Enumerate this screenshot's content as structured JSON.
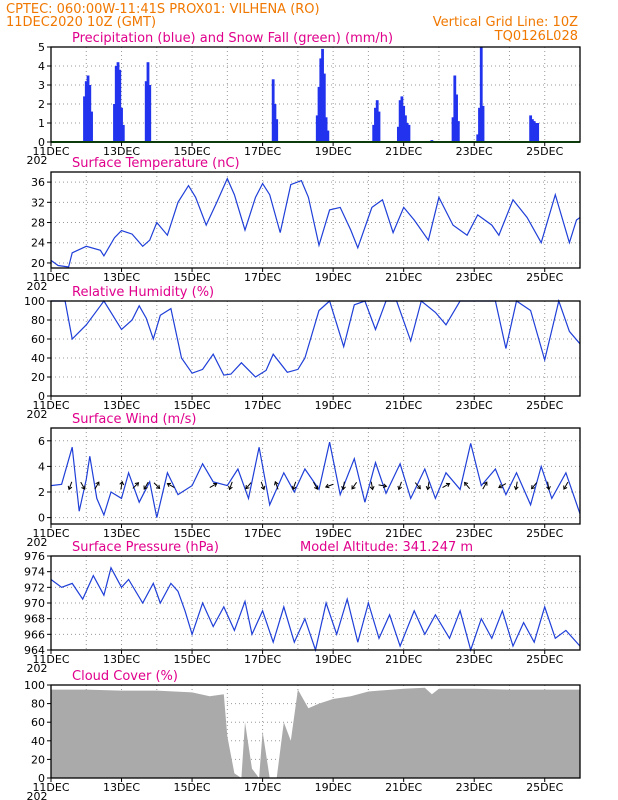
{
  "header": {
    "line1": "CPTEC:   060:00W-11:41S   PROX01: VILHENA (RO)",
    "line2": "11DEC2020 10Z (GMT)",
    "right1": "Vertical Grid Line: 10Z",
    "right2": "TQ0126L028"
  },
  "x_axis": {
    "labels": [
      "11DEC",
      "13DEC",
      "15DEC",
      "17DEC",
      "19DEC",
      "21DEC",
      "23DEC",
      "25DEC"
    ],
    "year_fragment": "202"
  },
  "colors": {
    "header": "#f07800",
    "panel_title": "#e0008c",
    "line": "#1f3fd8",
    "precip": "#2233ee",
    "snow": "#22aa22",
    "cloud": "#aaaaaa",
    "grid": "#999999"
  },
  "chart_data": [
    {
      "type": "bar",
      "title": "Precipitation (blue) and Snow Fall (green) (mm/h)",
      "ylim": [
        0,
        5
      ],
      "yticks": [
        0,
        1,
        2,
        3,
        4,
        5
      ],
      "x_range_days": [
        0,
        15
      ],
      "series": [
        {
          "name": "Precipitation",
          "points": [
            [
              0.95,
              2.4
            ],
            [
              1.0,
              3.2
            ],
            [
              1.05,
              3.5
            ],
            [
              1.1,
              3.0
            ],
            [
              1.15,
              1.6
            ],
            [
              1.8,
              2.0
            ],
            [
              1.85,
              4.0
            ],
            [
              1.9,
              4.2
            ],
            [
              1.95,
              3.8
            ],
            [
              2.0,
              1.8
            ],
            [
              2.05,
              0.9
            ],
            [
              2.7,
              3.2
            ],
            [
              2.75,
              4.2
            ],
            [
              2.8,
              3.0
            ],
            [
              6.3,
              3.3
            ],
            [
              6.35,
              2.0
            ],
            [
              6.4,
              1.2
            ],
            [
              7.55,
              1.4
            ],
            [
              7.6,
              2.9
            ],
            [
              7.65,
              4.4
            ],
            [
              7.7,
              4.9
            ],
            [
              7.75,
              3.6
            ],
            [
              7.8,
              1.3
            ],
            [
              7.85,
              0.6
            ],
            [
              9.15,
              0.9
            ],
            [
              9.2,
              1.8
            ],
            [
              9.25,
              2.2
            ],
            [
              9.3,
              1.6
            ],
            [
              9.85,
              0.8
            ],
            [
              9.9,
              2.2
            ],
            [
              9.95,
              2.4
            ],
            [
              10.0,
              1.9
            ],
            [
              10.05,
              1.4
            ],
            [
              10.1,
              1.0
            ],
            [
              10.15,
              0.9
            ],
            [
              10.8,
              0.1
            ],
            [
              11.4,
              1.3
            ],
            [
              11.45,
              3.5
            ],
            [
              11.5,
              2.5
            ],
            [
              11.55,
              1.1
            ],
            [
              12.1,
              0.4
            ],
            [
              12.15,
              1.8
            ],
            [
              12.2,
              5.0
            ],
            [
              12.25,
              1.9
            ],
            [
              13.6,
              1.4
            ],
            [
              13.65,
              1.2
            ],
            [
              13.7,
              1.1
            ],
            [
              13.75,
              1.0
            ],
            [
              13.8,
              1.0
            ]
          ]
        },
        {
          "name": "Snow Fall",
          "constant": 0
        }
      ]
    },
    {
      "type": "line",
      "title": "Surface Temperature (nC)",
      "ylim": [
        19,
        38
      ],
      "yticks": [
        20,
        24,
        28,
        32,
        36
      ],
      "series": [
        {
          "name": "Temperature",
          "x": [
            0,
            0.2,
            0.5,
            0.6,
            1.0,
            1.4,
            1.5,
            1.8,
            2.0,
            2.3,
            2.6,
            2.8,
            3.0,
            3.3,
            3.6,
            3.9,
            4.1,
            4.4,
            4.7,
            5.0,
            5.2,
            5.5,
            5.8,
            6.0,
            6.2,
            6.5,
            6.8,
            7.1,
            7.3,
            7.6,
            7.9,
            8.2,
            8.5,
            8.7,
            9.1,
            9.4,
            9.7,
            10.0,
            10.3,
            10.7,
            11.0,
            11.4,
            11.8,
            12.1,
            12.5,
            12.7,
            13.1,
            13.5,
            13.9,
            14.3,
            14.7,
            14.9,
            15.0
          ],
          "y": [
            20.5,
            19.5,
            19.2,
            22.0,
            23.3,
            22.5,
            21.4,
            25.0,
            26.4,
            25.7,
            23.3,
            24.5,
            28.0,
            25.5,
            32.0,
            35.3,
            33.0,
            27.5,
            32.0,
            36.7,
            33.5,
            26.5,
            33.0,
            35.7,
            33.5,
            26.0,
            35.5,
            36.3,
            33.0,
            23.5,
            30.5,
            31.0,
            26.5,
            23.0,
            31.0,
            32.5,
            26.0,
            31.0,
            28.5,
            24.5,
            33.0,
            27.5,
            25.5,
            29.5,
            27.5,
            25.5,
            32.5,
            29.0,
            24.0,
            33.5,
            24.0,
            28.5,
            29.0
          ]
        }
      ]
    },
    {
      "type": "line",
      "title": "Relative Humidity (%)",
      "ylim": [
        0,
        100
      ],
      "yticks": [
        0,
        20,
        40,
        60,
        80,
        100
      ],
      "series": [
        {
          "name": "Relative Humidity",
          "x": [
            0,
            0.4,
            0.6,
            1.0,
            1.4,
            1.5,
            1.7,
            2.0,
            2.3,
            2.5,
            2.7,
            2.9,
            3.1,
            3.4,
            3.7,
            4.0,
            4.3,
            4.6,
            4.9,
            5.1,
            5.4,
            5.8,
            6.1,
            6.3,
            6.7,
            7.0,
            7.2,
            7.6,
            7.9,
            8.3,
            8.6,
            8.9,
            9.2,
            9.5,
            9.8,
            10.2,
            10.5,
            10.9,
            11.2,
            11.6,
            11.9,
            12.3,
            12.6,
            12.9,
            13.2,
            13.6,
            14.0,
            14.4,
            14.7,
            15.0
          ],
          "y": [
            100,
            100,
            60,
            75,
            95,
            100,
            88,
            70,
            80,
            95,
            82,
            60,
            85,
            92,
            40,
            24,
            28,
            44,
            22,
            23,
            35,
            20,
            27,
            44,
            25,
            28,
            40,
            90,
            100,
            52,
            96,
            100,
            70,
            100,
            100,
            58,
            100,
            88,
            75,
            100,
            100,
            100,
            100,
            50,
            100,
            90,
            38,
            100,
            68,
            55
          ]
        }
      ]
    },
    {
      "type": "line",
      "title": "Surface Wind (m/s)",
      "ylim": [
        -0.5,
        7
      ],
      "yticks": [
        0,
        2,
        4,
        6
      ],
      "series": [
        {
          "name": "Wind Speed",
          "x": [
            0,
            0.3,
            0.6,
            0.8,
            1.0,
            1.1,
            1.3,
            1.5,
            1.7,
            2.0,
            2.2,
            2.5,
            2.8,
            3.0,
            3.3,
            3.6,
            4.0,
            4.3,
            4.6,
            5.0,
            5.3,
            5.6,
            5.9,
            6.2,
            6.6,
            6.9,
            7.2,
            7.6,
            7.9,
            8.2,
            8.6,
            8.9,
            9.2,
            9.5,
            9.9,
            10.2,
            10.6,
            10.9,
            11.2,
            11.6,
            11.9,
            12.2,
            12.6,
            12.9,
            13.2,
            13.6,
            13.9,
            14.2,
            14.6,
            15.0
          ],
          "y": [
            2.5,
            2.6,
            5.5,
            0.5,
            3.0,
            4.8,
            1.5,
            0.2,
            2.0,
            1.5,
            3.5,
            1.2,
            2.8,
            0.0,
            3.5,
            1.8,
            2.5,
            4.2,
            2.8,
            2.5,
            3.8,
            1.5,
            5.5,
            1.0,
            3.5,
            2.0,
            3.8,
            2.2,
            5.9,
            1.8,
            4.6,
            1.2,
            4.3,
            1.9,
            4.2,
            1.5,
            3.8,
            1.5,
            3.5,
            2.2,
            5.8,
            2.5,
            3.8,
            1.8,
            3.5,
            1.0,
            4.0,
            1.5,
            3.5,
            0.3
          ]
        }
      ],
      "arrows_x": [
        0.55,
        0.9,
        1.3,
        2.0,
        2.4,
        2.7,
        3.0,
        3.4,
        4.6,
        5.1,
        5.6,
        6.0,
        6.4,
        6.9,
        7.5,
        7.9,
        8.3,
        8.6,
        9.1,
        9.4,
        9.9,
        10.4,
        10.7,
        11.2,
        11.8,
        12.3,
        12.8,
        13.2,
        13.7,
        14.1,
        14.6
      ],
      "arrows_deg": [
        200,
        150,
        30,
        10,
        45,
        210,
        135,
        300,
        60,
        200,
        220,
        160,
        340,
        200,
        150,
        250,
        190,
        215,
        170,
        100,
        200,
        140,
        190,
        60,
        320,
        30,
        240,
        190,
        220,
        170,
        210
      ]
    },
    {
      "type": "line",
      "title": "Surface Pressure (hPa)",
      "annotation": "Model Altitude: 341.247 m",
      "ylim": [
        964,
        976
      ],
      "yticks": [
        964,
        966,
        968,
        970,
        972,
        974,
        976
      ],
      "series": [
        {
          "name": "Pressure",
          "x": [
            0,
            0.3,
            0.6,
            0.9,
            1.2,
            1.5,
            1.7,
            2.0,
            2.2,
            2.6,
            2.9,
            3.1,
            3.4,
            3.6,
            3.8,
            4.0,
            4.3,
            4.6,
            4.9,
            5.2,
            5.5,
            5.7,
            6.0,
            6.3,
            6.6,
            6.9,
            7.2,
            7.5,
            7.8,
            8.1,
            8.4,
            8.7,
            9.0,
            9.3,
            9.6,
            9.9,
            10.3,
            10.6,
            10.9,
            11.3,
            11.6,
            11.9,
            12.2,
            12.5,
            12.8,
            13.1,
            13.4,
            13.7,
            14.0,
            14.3,
            14.6,
            15.0
          ],
          "y": [
            973.0,
            972.0,
            972.5,
            970.5,
            973.5,
            971.0,
            974.5,
            972.0,
            973.0,
            970.0,
            972.5,
            970.0,
            972.5,
            971.5,
            969.0,
            966.0,
            970.0,
            967.0,
            969.5,
            966.5,
            970.2,
            966.0,
            969.0,
            965.0,
            969.5,
            965.0,
            968.0,
            964.0,
            970.0,
            966.0,
            970.5,
            965.0,
            970.0,
            965.5,
            968.5,
            964.5,
            969.0,
            966.0,
            968.5,
            965.5,
            969.0,
            964.0,
            968.0,
            965.5,
            969.0,
            964.5,
            967.5,
            965.0,
            969.5,
            965.5,
            966.5,
            964.5
          ]
        }
      ]
    },
    {
      "type": "area",
      "title": "Cloud Cover (%)",
      "ylim": [
        0,
        100
      ],
      "yticks": [
        0,
        20,
        40,
        60,
        80,
        100
      ],
      "series": [
        {
          "name": "Cloud Cover",
          "x": [
            0,
            1.0,
            2.0,
            3.0,
            4.0,
            4.5,
            4.9,
            5.0,
            5.2,
            5.4,
            5.5,
            5.7,
            5.9,
            6.0,
            6.2,
            6.4,
            6.6,
            6.8,
            7.0,
            7.3,
            7.6,
            8.0,
            8.5,
            9.0,
            10.0,
            10.6,
            10.8,
            11.0,
            12.0,
            13.0,
            14.0,
            15.0
          ],
          "y": [
            95,
            95,
            94,
            94,
            92,
            88,
            90,
            45,
            5,
            0,
            60,
            10,
            0,
            50,
            0,
            0,
            60,
            40,
            95,
            75,
            80,
            85,
            88,
            93,
            96,
            97,
            90,
            96,
            96,
            95,
            95,
            95
          ]
        }
      ]
    }
  ]
}
